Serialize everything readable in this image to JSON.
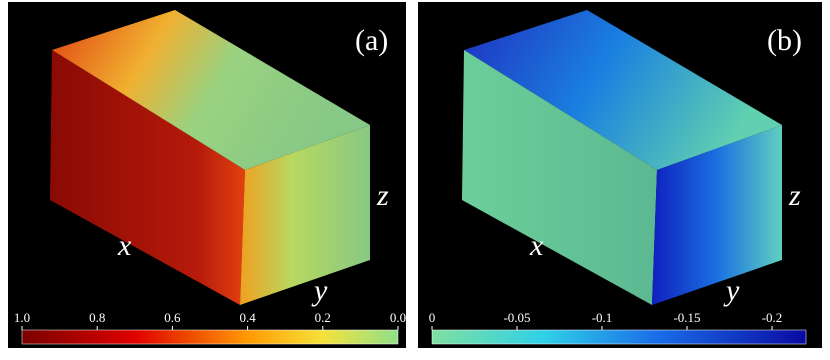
{
  "panels": [
    {
      "label": "(a)",
      "axes": {
        "x": "x",
        "y": "y",
        "z": "z"
      },
      "colorbar": {
        "lim": [
          1,
          0
        ],
        "ticks": [
          {
            "value": 1,
            "label": "1.0"
          },
          {
            "value": 0.8,
            "label": "0.8"
          },
          {
            "value": 0.6,
            "label": "0.6"
          },
          {
            "value": 0.4,
            "label": "0.4"
          },
          {
            "value": 0.2,
            "label": "0.2"
          },
          {
            "value": 0,
            "label": "0.0"
          }
        ]
      }
    },
    {
      "label": "(b)",
      "axes": {
        "x": "x",
        "y": "y",
        "z": "z"
      },
      "colorbar": {
        "lim": [
          0,
          -0.22
        ],
        "ticks": [
          0,
          -0.05,
          -0.1,
          -0.15,
          -0.2
        ]
      }
    }
  ]
}
